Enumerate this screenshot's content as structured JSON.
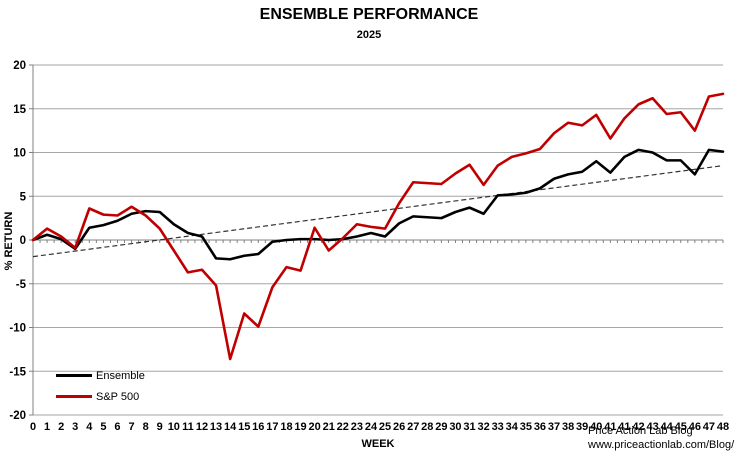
{
  "header": {
    "title": "ENSEMBLE PERFORMANCE",
    "subtitle": "2025"
  },
  "chart_data": {
    "type": "line",
    "title": "ENSEMBLE PERFORMANCE",
    "subtitle": "2025",
    "xlabel": "WEEK",
    "ylabel": "% RETURN",
    "ylim": [
      -20,
      20
    ],
    "ytick_step": 5,
    "grid": "horizontal",
    "legend_position": "bottom-left-inside",
    "x_labels": [
      "0",
      "1",
      "2",
      "3",
      "4",
      "5",
      "6",
      "7",
      "8",
      "9",
      "10",
      "11",
      "12",
      "13",
      "14",
      "15",
      "16",
      "17",
      "18",
      "19",
      "20",
      "21",
      "22",
      "23",
      "24",
      "25",
      "26",
      "27",
      "28",
      "29",
      "30",
      "31",
      "32",
      "33",
      "34",
      "35",
      "36",
      "37",
      "38",
      "39",
      "40",
      "41",
      "41",
      "42",
      "43",
      "44",
      "45",
      "46",
      "47",
      "48"
    ],
    "series": [
      {
        "name": "Ensemble",
        "color": "#000000",
        "width": 2.6,
        "values": [
          0.0,
          0.6,
          0.1,
          -1.0,
          1.4,
          1.7,
          2.2,
          3.0,
          3.3,
          3.2,
          1.8,
          0.8,
          0.4,
          -2.1,
          -2.2,
          -1.8,
          -1.6,
          -0.2,
          0.0,
          0.1,
          0.1,
          0.0,
          0.1,
          0.4,
          0.8,
          0.4,
          1.9,
          2.7,
          2.6,
          2.5,
          3.2,
          3.7,
          3.0,
          5.1,
          5.2,
          5.4,
          5.9,
          7.0,
          7.5,
          7.8,
          9.0,
          7.7,
          9.5,
          10.3,
          10.0,
          9.1,
          9.1,
          7.5,
          10.3,
          10.1
        ]
      },
      {
        "name": "S&P 500",
        "color": "#c00000",
        "width": 2.6,
        "values": [
          0.0,
          1.3,
          0.4,
          -0.9,
          3.6,
          2.9,
          2.8,
          3.8,
          2.8,
          1.3,
          -1.2,
          -3.7,
          -3.4,
          -5.2,
          -13.6,
          -8.4,
          -9.9,
          -5.4,
          -3.1,
          -3.5,
          1.4,
          -1.2,
          0.2,
          1.8,
          1.5,
          1.3,
          4.2,
          6.6,
          6.5,
          6.4,
          7.6,
          8.6,
          6.3,
          8.5,
          9.5,
          9.9,
          10.4,
          12.2,
          13.4,
          13.1,
          14.3,
          11.6,
          13.9,
          15.5,
          16.2,
          14.4,
          14.6,
          12.5,
          16.4,
          16.7
        ]
      }
    ],
    "trend": {
      "name": "linear-trend",
      "start": -1.9,
      "end": 8.5,
      "color": "#333333",
      "dash": "5 3"
    },
    "colors": {
      "grid": "#a6a6a6",
      "axis": "#808080",
      "text": "#000000",
      "background": "#ffffff"
    }
  },
  "footer": {
    "attribution_line1": "Price Action Lab Blog",
    "attribution_line2": "www.priceactionlab.com/Blog/"
  }
}
